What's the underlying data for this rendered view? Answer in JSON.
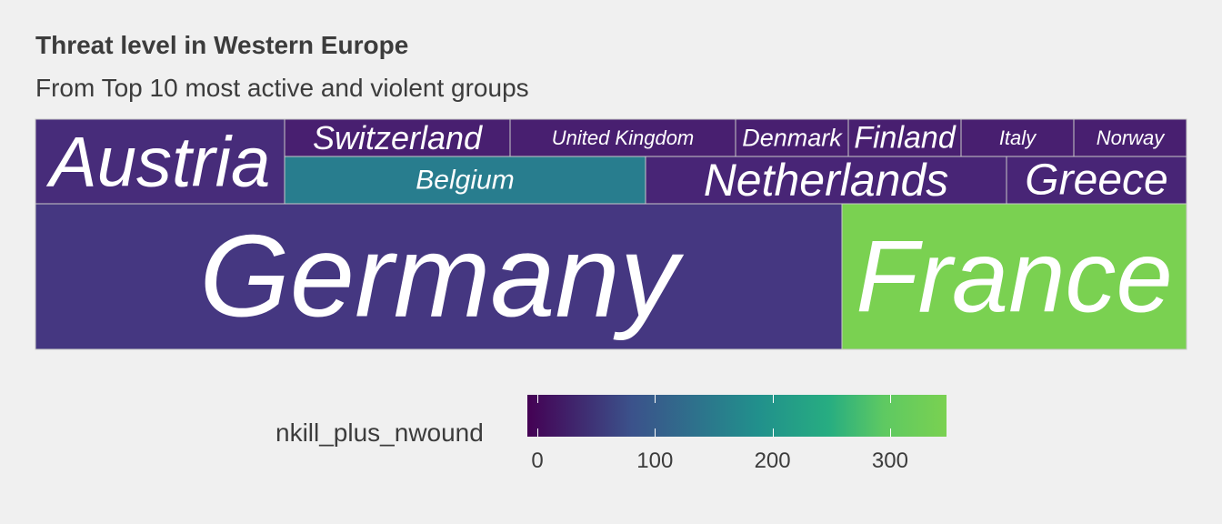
{
  "chart_data": {
    "type": "treemap",
    "title": "Threat level in Western Europe",
    "subtitle": "From Top 10 most active and violent groups",
    "legend": {
      "title": "nkill_plus_nwound",
      "ticks": [
        0,
        100,
        200,
        300
      ],
      "range": [
        0,
        350
      ],
      "placement": "bottom",
      "palette": "viridis"
    },
    "tiles": [
      {
        "name": "Germany",
        "value": 130,
        "color": "#453781"
      },
      {
        "name": "France",
        "value": 350,
        "color": "#7ad151"
      },
      {
        "name": "Austria",
        "value": 15,
        "color": "#472c7a"
      },
      {
        "name": "Belgium",
        "value": 170,
        "color": "#287d8e"
      },
      {
        "name": "Netherlands",
        "value": 20,
        "color": "#482576"
      },
      {
        "name": "Greece",
        "value": 20,
        "color": "#482576"
      },
      {
        "name": "Switzerland",
        "value": 10,
        "color": "#481f70"
      },
      {
        "name": "United Kingdom",
        "value": 10,
        "color": "#481f70"
      },
      {
        "name": "Denmark",
        "value": 10,
        "color": "#481f70"
      },
      {
        "name": "Finland",
        "value": 10,
        "color": "#481f70"
      },
      {
        "name": "Italy",
        "value": 10,
        "color": "#481f70"
      },
      {
        "name": "Norway",
        "value": 10,
        "color": "#481f70"
      }
    ]
  }
}
